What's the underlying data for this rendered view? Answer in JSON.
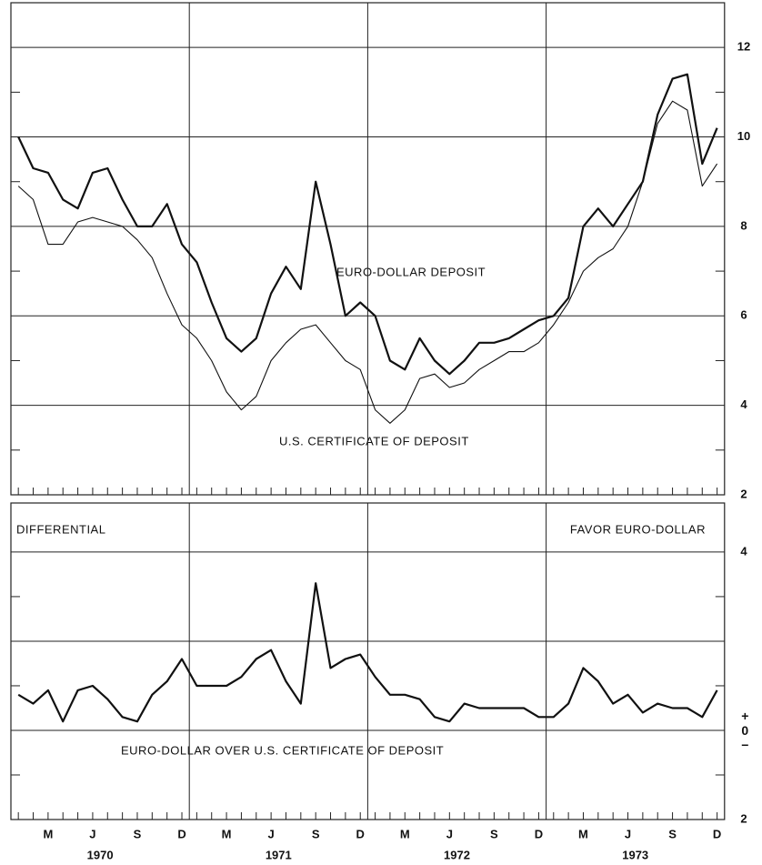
{
  "chart_data": [
    {
      "type": "line",
      "x": [
        "1970-01",
        "1970-02",
        "1970-03",
        "1970-04",
        "1970-05",
        "1970-06",
        "1970-07",
        "1970-08",
        "1970-09",
        "1970-10",
        "1970-11",
        "1970-12",
        "1971-01",
        "1971-02",
        "1971-03",
        "1971-04",
        "1971-05",
        "1971-06",
        "1971-07",
        "1971-08",
        "1971-09",
        "1971-10",
        "1971-11",
        "1971-12",
        "1972-01",
        "1972-02",
        "1972-03",
        "1972-04",
        "1972-05",
        "1972-06",
        "1972-07",
        "1972-08",
        "1972-09",
        "1972-10",
        "1972-11",
        "1972-12",
        "1973-01",
        "1973-02",
        "1973-03",
        "1973-04",
        "1973-05",
        "1973-06",
        "1973-07",
        "1973-08",
        "1973-09",
        "1973-10",
        "1973-11",
        "1973-12"
      ],
      "series": [
        {
          "name": "EURO-DOLLAR DEPOSIT",
          "color": "#111111",
          "values": [
            10.0,
            9.3,
            9.2,
            8.6,
            8.4,
            9.2,
            9.3,
            8.6,
            8.0,
            8.0,
            8.5,
            7.6,
            7.2,
            6.3,
            5.5,
            5.2,
            5.5,
            6.5,
            7.1,
            6.6,
            9.0,
            7.6,
            6.0,
            6.3,
            6.0,
            5.0,
            4.8,
            5.5,
            5.0,
            4.7,
            5.0,
            5.4,
            5.4,
            5.5,
            5.7,
            5.9,
            6.0,
            6.4,
            8.0,
            8.4,
            8.0,
            8.5,
            9.0,
            10.5,
            11.3,
            11.4,
            9.4,
            10.2
          ]
        },
        {
          "name": "U.S. CERTIFICATE OF DEPOSIT",
          "color": "#111111",
          "values": [
            8.9,
            8.6,
            7.6,
            7.6,
            8.1,
            8.2,
            8.1,
            8.0,
            7.7,
            7.3,
            6.5,
            5.8,
            5.5,
            5.0,
            4.3,
            3.9,
            4.2,
            5.0,
            5.4,
            5.7,
            5.8,
            5.4,
            5.0,
            4.8,
            3.9,
            3.6,
            3.9,
            4.6,
            4.7,
            4.4,
            4.5,
            4.8,
            5.0,
            5.2,
            5.2,
            5.4,
            5.8,
            6.3,
            7.0,
            7.3,
            7.5,
            8.0,
            9.0,
            10.3,
            10.8,
            10.6,
            8.9,
            9.4
          ]
        }
      ],
      "ylim": [
        2,
        13
      ],
      "yticks": [
        2,
        4,
        6,
        8,
        10,
        12
      ],
      "minor_yticks": [
        3,
        5,
        7,
        9,
        11
      ],
      "grid": true
    },
    {
      "type": "line",
      "annotations": [
        "DIFFERENTIAL",
        "FAVOR EURO-DOLLAR"
      ],
      "x": [
        "1970-01",
        "1970-02",
        "1970-03",
        "1970-04",
        "1970-05",
        "1970-06",
        "1970-07",
        "1970-08",
        "1970-09",
        "1970-10",
        "1970-11",
        "1970-12",
        "1971-01",
        "1971-02",
        "1971-03",
        "1971-04",
        "1971-05",
        "1971-06",
        "1971-07",
        "1971-08",
        "1971-09",
        "1971-10",
        "1971-11",
        "1971-12",
        "1972-01",
        "1972-02",
        "1972-03",
        "1972-04",
        "1972-05",
        "1972-06",
        "1972-07",
        "1972-08",
        "1972-09",
        "1972-10",
        "1972-11",
        "1972-12",
        "1973-01",
        "1973-02",
        "1973-03",
        "1973-04",
        "1973-05",
        "1973-06",
        "1973-07",
        "1973-08",
        "1973-09",
        "1973-10",
        "1973-11",
        "1973-12"
      ],
      "series": [
        {
          "name": "EURO-DOLLAR OVER U.S. CERTIFICATE OF DEPOSIT",
          "color": "#111111",
          "values": [
            0.8,
            0.6,
            0.9,
            0.2,
            0.9,
            1.0,
            0.7,
            0.3,
            0.2,
            0.8,
            1.1,
            1.6,
            1.0,
            1.0,
            1.0,
            1.2,
            1.6,
            1.8,
            1.1,
            0.6,
            3.3,
            1.4,
            1.6,
            1.7,
            1.2,
            0.8,
            0.8,
            0.7,
            0.3,
            0.2,
            0.6,
            0.5,
            0.5,
            0.5,
            0.5,
            0.3,
            0.3,
            0.6,
            1.4,
            1.1,
            0.6,
            0.8,
            0.4,
            0.6,
            0.5,
            0.5,
            0.3,
            0.9
          ]
        }
      ],
      "ylim": [
        -2,
        5.1
      ],
      "yticks": [
        4,
        {
          "value": 0,
          "label": "+0−"
        },
        {
          "value": -2,
          "label": "2"
        }
      ],
      "minor_yticks": [
        3,
        1,
        -1
      ],
      "grid_values": [
        4,
        2,
        0
      ],
      "grid": true,
      "xticks": [
        {
          "value": "1970-03",
          "label": "M"
        },
        {
          "value": "1970-06",
          "label": "J"
        },
        {
          "value": "1970-09",
          "label": "S"
        },
        {
          "value": "1970-12",
          "label": "D"
        },
        {
          "value": "1971-03",
          "label": "M"
        },
        {
          "value": "1971-06",
          "label": "J"
        },
        {
          "value": "1971-09",
          "label": "S"
        },
        {
          "value": "1971-12",
          "label": "D"
        },
        {
          "value": "1972-03",
          "label": "M"
        },
        {
          "value": "1972-06",
          "label": "J"
        },
        {
          "value": "1972-09",
          "label": "S"
        },
        {
          "value": "1972-12",
          "label": "D"
        },
        {
          "value": "1973-03",
          "label": "M"
        },
        {
          "value": "1973-06",
          "label": "J"
        },
        {
          "value": "1973-09",
          "label": "S"
        },
        {
          "value": "1973-12",
          "label": "D"
        }
      ],
      "years": [
        "1970",
        "1971",
        "1972",
        "1973"
      ]
    }
  ]
}
